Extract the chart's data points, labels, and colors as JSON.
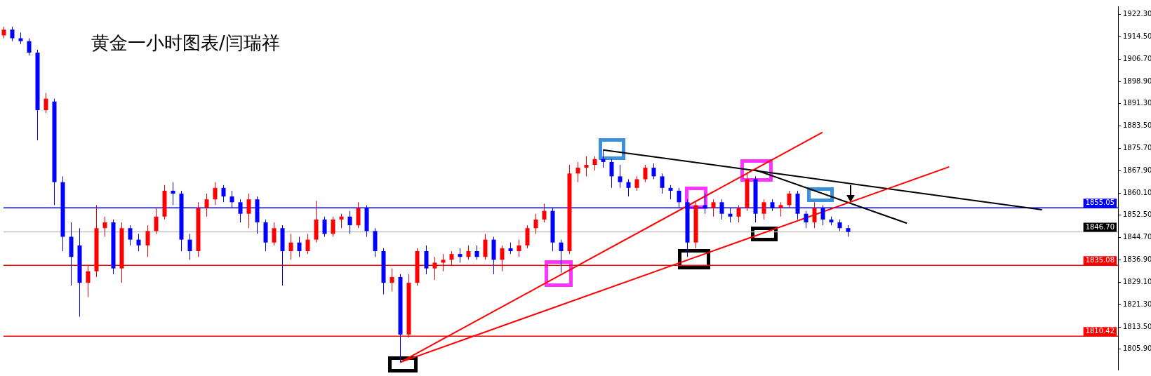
{
  "chart_data": {
    "type": "candlestick",
    "title": "黄金一小时图表/闫瑞祥",
    "categories": [
      null,
      null,
      null,
      null,
      null,
      null,
      null,
      null,
      null,
      null,
      null,
      null,
      null,
      null,
      null,
      null,
      null,
      null,
      null,
      null,
      null,
      null,
      null,
      null,
      null,
      null,
      null,
      null,
      null,
      null,
      null,
      null,
      null,
      null,
      null,
      null,
      null,
      null,
      null,
      null,
      null,
      null,
      null,
      null,
      null,
      null,
      null,
      null,
      null,
      null,
      null,
      null,
      null,
      null,
      null,
      null,
      null,
      null,
      null,
      null,
      null,
      null,
      null,
      null,
      null,
      null,
      null,
      null,
      null,
      null,
      null,
      null,
      null,
      null,
      null,
      null,
      null,
      null,
      null,
      null,
      null,
      null,
      null,
      null,
      null,
      null,
      null,
      null,
      null,
      null,
      null,
      null,
      null,
      null,
      null,
      null,
      null,
      null,
      null,
      null,
      null,
      null,
      null,
      null,
      null,
      null,
      null,
      null,
      null,
      null,
      null,
      null,
      null,
      null,
      null,
      null,
      null,
      null,
      null,
      null,
      null,
      null,
      null,
      null,
      null,
      null,
      null,
      null,
      null,
      null,
      null,
      null,
      null
    ],
    "ohlc": [
      [
        1915,
        1918,
        1914,
        1917
      ],
      [
        1917,
        1918,
        1913,
        1914
      ],
      [
        1914,
        1916,
        1912,
        1913
      ],
      [
        1913,
        1914,
        1908,
        1909
      ],
      [
        1909,
        1910,
        1878.5,
        1889
      ],
      [
        1889,
        1895,
        1888,
        1893
      ],
      [
        1892,
        1893,
        1856,
        1864
      ],
      [
        1864,
        1866,
        1840,
        1845
      ],
      [
        1845,
        1850,
        1828,
        1838
      ],
      [
        1842,
        1848,
        1817.2,
        1829
      ],
      [
        1829,
        1835,
        1824,
        1833
      ],
      [
        1833,
        1856,
        1831,
        1848
      ],
      [
        1848,
        1852,
        1845,
        1850
      ],
      [
        1850,
        1851,
        1832,
        1834
      ],
      [
        1834,
        1850,
        1829,
        1848
      ],
      [
        1848,
        1849,
        1842,
        1844
      ],
      [
        1844,
        1846,
        1840,
        1842
      ],
      [
        1842,
        1849,
        1838,
        1847
      ],
      [
        1847,
        1855,
        1846,
        1852
      ],
      [
        1852,
        1863,
        1851,
        1861
      ],
      [
        1861,
        1864,
        1856,
        1860
      ],
      [
        1860,
        1861,
        1840,
        1844
      ],
      [
        1844,
        1846,
        1837,
        1840
      ],
      [
        1840,
        1857,
        1838,
        1855
      ],
      [
        1855,
        1860,
        1852,
        1858
      ],
      [
        1858,
        1864,
        1856,
        1862
      ],
      [
        1862,
        1863,
        1857,
        1859
      ],
      [
        1859,
        1861,
        1855,
        1857
      ],
      [
        1857,
        1858,
        1850,
        1853
      ],
      [
        1853,
        1860,
        1848,
        1858
      ],
      [
        1858,
        1859,
        1846,
        1850
      ],
      [
        1850,
        1851,
        1840,
        1843
      ],
      [
        1843,
        1850,
        1842,
        1848
      ],
      [
        1848,
        1849,
        1828,
        1840
      ],
      [
        1840,
        1846,
        1837,
        1843
      ],
      [
        1843,
        1845,
        1838,
        1840
      ],
      [
        1840,
        1846,
        1839,
        1844
      ],
      [
        1844,
        1857.5,
        1843,
        1851
      ],
      [
        1851,
        1852,
        1845,
        1846
      ],
      [
        1846,
        1852,
        1845,
        1851
      ],
      [
        1851,
        1853,
        1848,
        1852
      ],
      [
        1852,
        1854,
        1846,
        1849
      ],
      [
        1849,
        1857,
        1848,
        1855
      ],
      [
        1855,
        1856,
        1845,
        1847
      ],
      [
        1847,
        1848,
        1838,
        1840
      ],
      [
        1840,
        1841,
        1825,
        1829
      ],
      [
        1829,
        1834,
        1826,
        1831
      ],
      [
        1831,
        1832,
        1801.4,
        1811
      ],
      [
        1811,
        1832,
        1810,
        1829
      ],
      [
        1829,
        1841,
        1828,
        1840
      ],
      [
        1840,
        1842,
        1832,
        1834
      ],
      [
        1834,
        1838,
        1830,
        1836
      ],
      [
        1836,
        1839,
        1833,
        1837
      ],
      [
        1837,
        1840,
        1835,
        1839
      ],
      [
        1839,
        1841,
        1836,
        1838
      ],
      [
        1838,
        1842,
        1837,
        1840
      ],
      [
        1840,
        1842,
        1837,
        1838
      ],
      [
        1838,
        1846,
        1837,
        1844
      ],
      [
        1844,
        1845,
        1832,
        1837
      ],
      [
        1837,
        1842,
        1833,
        1841
      ],
      [
        1841,
        1843,
        1839,
        1840
      ],
      [
        1840,
        1844,
        1838,
        1842
      ],
      [
        1842,
        1849,
        1841,
        1848
      ],
      [
        1848,
        1853,
        1846,
        1851
      ],
      [
        1851,
        1856.5,
        1850,
        1854
      ],
      [
        1854,
        1855,
        1840,
        1843
      ],
      [
        1843,
        1844,
        1832.5,
        1840
      ],
      [
        1840,
        1870,
        1839,
        1867
      ],
      [
        1867,
        1871,
        1864,
        1869
      ],
      [
        1869,
        1873,
        1866,
        1870
      ],
      [
        1870,
        1873,
        1868,
        1872
      ],
      [
        1872,
        1875.2,
        1869,
        1871
      ],
      [
        1871,
        1872,
        1862,
        1866
      ],
      [
        1866,
        1870,
        1862,
        1864
      ],
      [
        1864,
        1865,
        1859,
        1862
      ],
      [
        1862,
        1866,
        1861,
        1865
      ],
      [
        1865,
        1870,
        1864,
        1869
      ],
      [
        1869,
        1870.5,
        1865,
        1866
      ],
      [
        1866,
        1867,
        1860,
        1862
      ],
      [
        1862,
        1863,
        1858,
        1861
      ],
      [
        1861,
        1862,
        1855,
        1857
      ],
      [
        1857,
        1858,
        1838,
        1843
      ],
      [
        1843,
        1857,
        1841,
        1856
      ],
      [
        1856,
        1860,
        1853,
        1855
      ],
      [
        1855,
        1858,
        1852,
        1857
      ],
      [
        1857,
        1858,
        1851,
        1853
      ],
      [
        1853,
        1855,
        1850,
        1852
      ],
      [
        1852,
        1856,
        1850,
        1855
      ],
      [
        1855,
        1867.5,
        1854,
        1865
      ],
      [
        1865,
        1866,
        1850,
        1853
      ],
      [
        1853,
        1858,
        1851,
        1857
      ],
      [
        1857,
        1858,
        1854,
        1855
      ],
      [
        1855,
        1857,
        1852,
        1856
      ],
      [
        1856,
        1861,
        1855,
        1860
      ],
      [
        1860,
        1861,
        1851,
        1853
      ],
      [
        1853,
        1854,
        1848,
        1850
      ],
      [
        1850,
        1857,
        1848,
        1855
      ],
      [
        1855,
        1856,
        1849,
        1851
      ],
      [
        1851,
        1852,
        1849,
        1850
      ],
      [
        1850,
        1851,
        1847,
        1848
      ],
      [
        1848,
        1849,
        1845,
        1846.7
      ],
      null,
      null,
      null,
      null,
      null,
      null,
      null,
      null,
      null,
      null,
      null,
      null,
      null,
      null,
      null,
      null,
      null,
      null,
      null,
      null,
      null,
      null,
      null,
      null,
      null,
      null,
      null,
      null,
      null,
      null,
      null,
      null
    ],
    "colors": [
      "#ff0000",
      "#0000ff",
      "#0000ff",
      "#0000ff",
      "#0000ff",
      "#ff0000",
      "#0000ff",
      "#0000ff",
      "#0000ff",
      "#0000ff",
      "#ff0000",
      "#ff0000",
      "#ff0000",
      "#0000ff",
      "#ff0000",
      "#0000ff",
      "#0000ff",
      "#ff0000",
      "#ff0000",
      "#ff0000",
      "#0000ff",
      "#0000ff",
      "#0000ff",
      "#ff0000",
      "#ff0000",
      "#ff0000",
      "#0000ff",
      "#0000ff",
      "#0000ff",
      "#ff0000",
      "#0000ff",
      "#0000ff",
      "#ff0000",
      "#0000ff",
      "#ff0000",
      "#0000ff",
      "#ff0000",
      "#ff0000",
      "#0000ff",
      "#ff0000",
      "#ff0000",
      "#0000ff",
      "#ff0000",
      "#0000ff",
      "#0000ff",
      "#0000ff",
      "#ff0000",
      "#0000ff",
      "#ff0000",
      "#ff0000",
      "#0000ff",
      "#ff0000",
      "#ff0000",
      "#ff0000",
      "#0000ff",
      "#ff0000",
      "#0000ff",
      "#ff0000",
      "#0000ff",
      "#ff0000",
      "#0000ff",
      "#ff0000",
      "#ff0000",
      "#ff0000",
      "#ff0000",
      "#0000ff",
      "#0000ff",
      "#ff0000",
      "#ff0000",
      "#ff0000",
      "#ff0000",
      "#0000ff",
      "#0000ff",
      "#0000ff",
      "#0000ff",
      "#ff0000",
      "#ff0000",
      "#0000ff",
      "#0000ff",
      "#0000ff",
      "#0000ff",
      "#0000ff",
      "#ff0000",
      "#0000ff",
      "#ff0000",
      "#0000ff",
      "#0000ff",
      "#ff0000",
      "#ff0000",
      "#0000ff",
      "#ff0000",
      "#0000ff",
      "#ff0000",
      "#ff0000",
      "#0000ff",
      "#0000ff",
      "#ff0000",
      "#0000ff",
      "#0000ff",
      "#0000ff",
      "#0000ff",
      null,
      null,
      null,
      null,
      null,
      null,
      null,
      null,
      null,
      null,
      null,
      null,
      null,
      null,
      null,
      null,
      null,
      null,
      null,
      null,
      null,
      null,
      null,
      null,
      null,
      null,
      null,
      null,
      null,
      null,
      null,
      null
    ],
    "series": [
      {
        "type": "line",
        "color": "#ff0000",
        "values": [
          null,
          null,
          null,
          null,
          null,
          null,
          null,
          null,
          null,
          null,
          null,
          null,
          null,
          null,
          null,
          null,
          null,
          null,
          null,
          null,
          null,
          null,
          null,
          null,
          null,
          null,
          null,
          null,
          null,
          null,
          null,
          null,
          null,
          null,
          null,
          null,
          null,
          null,
          null,
          null,
          null,
          null,
          null,
          null,
          null,
          null,
          null,
          1801.4,
          null,
          null,
          null,
          null,
          null,
          null,
          null,
          null,
          null,
          null,
          null,
          null,
          null,
          null,
          null,
          null,
          null,
          null,
          null,
          null,
          null,
          null,
          null,
          null,
          null,
          null,
          null,
          null,
          null,
          null,
          null,
          null,
          null,
          null,
          null,
          null,
          null,
          null,
          null,
          null,
          null,
          null,
          null,
          null,
          null,
          null,
          null,
          null,
          null,
          1881.3,
          null,
          null,
          null,
          null,
          null,
          null,
          null,
          null,
          null,
          null,
          null,
          null,
          null,
          null,
          null,
          null,
          null,
          null,
          null,
          null,
          null,
          null,
          null,
          null,
          null,
          null,
          null,
          null,
          null,
          null,
          null,
          null,
          null,
          null,
          null
        ]
      },
      {
        "type": "line",
        "color": "#ff0000",
        "values": [
          null,
          null,
          null,
          null,
          null,
          null,
          null,
          null,
          null,
          null,
          null,
          null,
          null,
          null,
          null,
          null,
          null,
          null,
          null,
          null,
          null,
          null,
          null,
          null,
          null,
          null,
          null,
          null,
          null,
          null,
          null,
          null,
          null,
          null,
          null,
          null,
          null,
          null,
          null,
          null,
          null,
          null,
          null,
          null,
          null,
          null,
          null,
          1801.4,
          null,
          null,
          null,
          null,
          null,
          null,
          null,
          null,
          null,
          null,
          null,
          null,
          null,
          null,
          null,
          null,
          null,
          null,
          null,
          null,
          null,
          null,
          null,
          null,
          null,
          null,
          null,
          null,
          null,
          null,
          null,
          null,
          null,
          null,
          null,
          null,
          null,
          null,
          null,
          null,
          null,
          null,
          null,
          null,
          null,
          null,
          null,
          null,
          null,
          null,
          null,
          null,
          null,
          null,
          null,
          null,
          null,
          null,
          null,
          null,
          null,
          null,
          null,
          null,
          1869.3,
          null,
          null,
          null,
          null,
          null,
          null,
          null,
          null,
          null,
          null,
          null,
          null,
          null,
          null,
          null,
          null,
          null,
          null,
          null,
          null
        ]
      },
      {
        "type": "line",
        "color": "#000000",
        "values": [
          null,
          null,
          null,
          null,
          null,
          null,
          null,
          null,
          null,
          null,
          null,
          null,
          null,
          null,
          null,
          null,
          null,
          null,
          null,
          null,
          null,
          null,
          null,
          null,
          null,
          null,
          null,
          null,
          null,
          null,
          null,
          null,
          null,
          null,
          null,
          null,
          null,
          null,
          null,
          null,
          null,
          null,
          null,
          null,
          null,
          null,
          null,
          null,
          null,
          null,
          null,
          null,
          null,
          null,
          null,
          null,
          null,
          null,
          null,
          null,
          null,
          null,
          null,
          null,
          null,
          null,
          null,
          null,
          null,
          null,
          null,
          1875.2,
          null,
          null,
          null,
          null,
          null,
          null,
          null,
          null,
          null,
          null,
          null,
          null,
          null,
          null,
          null,
          null,
          null,
          null,
          null,
          null,
          null,
          null,
          null,
          null,
          null,
          null,
          null,
          null,
          null,
          null,
          null,
          null,
          null,
          null,
          null,
          null,
          null,
          null,
          null,
          null,
          null,
          null,
          null,
          null,
          null,
          null,
          null,
          null,
          null,
          null,
          null,
          1854.4,
          null,
          null,
          null,
          null,
          null,
          null,
          null,
          null,
          null
        ]
      },
      {
        "type": "line",
        "color": "#000000",
        "values": [
          null,
          null,
          null,
          null,
          null,
          null,
          null,
          null,
          null,
          null,
          null,
          null,
          null,
          null,
          null,
          null,
          null,
          null,
          null,
          null,
          null,
          null,
          null,
          null,
          null,
          null,
          null,
          null,
          null,
          null,
          null,
          null,
          null,
          null,
          null,
          null,
          null,
          null,
          null,
          null,
          null,
          null,
          null,
          null,
          null,
          null,
          null,
          null,
          null,
          null,
          null,
          null,
          null,
          null,
          null,
          null,
          null,
          null,
          null,
          null,
          null,
          null,
          null,
          null,
          null,
          null,
          null,
          null,
          null,
          null,
          null,
          null,
          null,
          null,
          null,
          null,
          null,
          null,
          null,
          null,
          null,
          null,
          null,
          null,
          null,
          null,
          null,
          null,
          null,
          1868.3,
          null,
          null,
          null,
          null,
          null,
          null,
          null,
          null,
          null,
          null,
          null,
          null,
          null,
          null,
          null,
          null,
          null,
          1849.7,
          null,
          null,
          null,
          null,
          null,
          null,
          null,
          null,
          null,
          null,
          null,
          null,
          null,
          null,
          null,
          null,
          null,
          null,
          null,
          null,
          null,
          null,
          null,
          null,
          null
        ]
      }
    ],
    "ref_lines": [
      {
        "axis": "y",
        "value": 1855.05,
        "label": "1855.05",
        "color": "#0000ff"
      },
      {
        "axis": "y",
        "value": 1846.7,
        "label": "1846.70",
        "color": "#c0c0c0"
      },
      {
        "axis": "y",
        "value": 1835.08,
        "label": "1835.08",
        "color": "#ff0000"
      },
      {
        "axis": "y",
        "value": 1810.42,
        "label": "1810.42",
        "color": "#ff0000"
      }
    ],
    "ylim": [
      1798.8,
      1925.1
    ],
    "yticks": [
      {
        "value": 1922.3,
        "label": "1922.30"
      },
      {
        "value": 1914.5,
        "label": "1914.50"
      },
      {
        "value": 1906.7,
        "label": "1906.70"
      },
      {
        "value": 1898.9,
        "label": "1898.90"
      },
      {
        "value": 1891.3,
        "label": "1891.30"
      },
      {
        "value": 1883.5,
        "label": "1883.50"
      },
      {
        "value": 1875.7,
        "label": "1875.70"
      },
      {
        "value": 1867.9,
        "label": "1867.90"
      },
      {
        "value": 1860.1,
        "label": "1860.10"
      },
      {
        "value": 1852.5,
        "label": "1852.50"
      },
      {
        "value": 1844.7,
        "label": "1844.70"
      },
      {
        "value": 1836.9,
        "label": "1836.90"
      },
      {
        "value": 1829.1,
        "label": "1829.10"
      },
      {
        "value": 1821.3,
        "label": "1821.30"
      },
      {
        "value": 1813.5,
        "label": "1813.50"
      },
      {
        "value": 1805.9,
        "label": "1805.90"
      }
    ],
    "tick_labels": "y",
    "grid": false,
    "legend": false
  }
}
